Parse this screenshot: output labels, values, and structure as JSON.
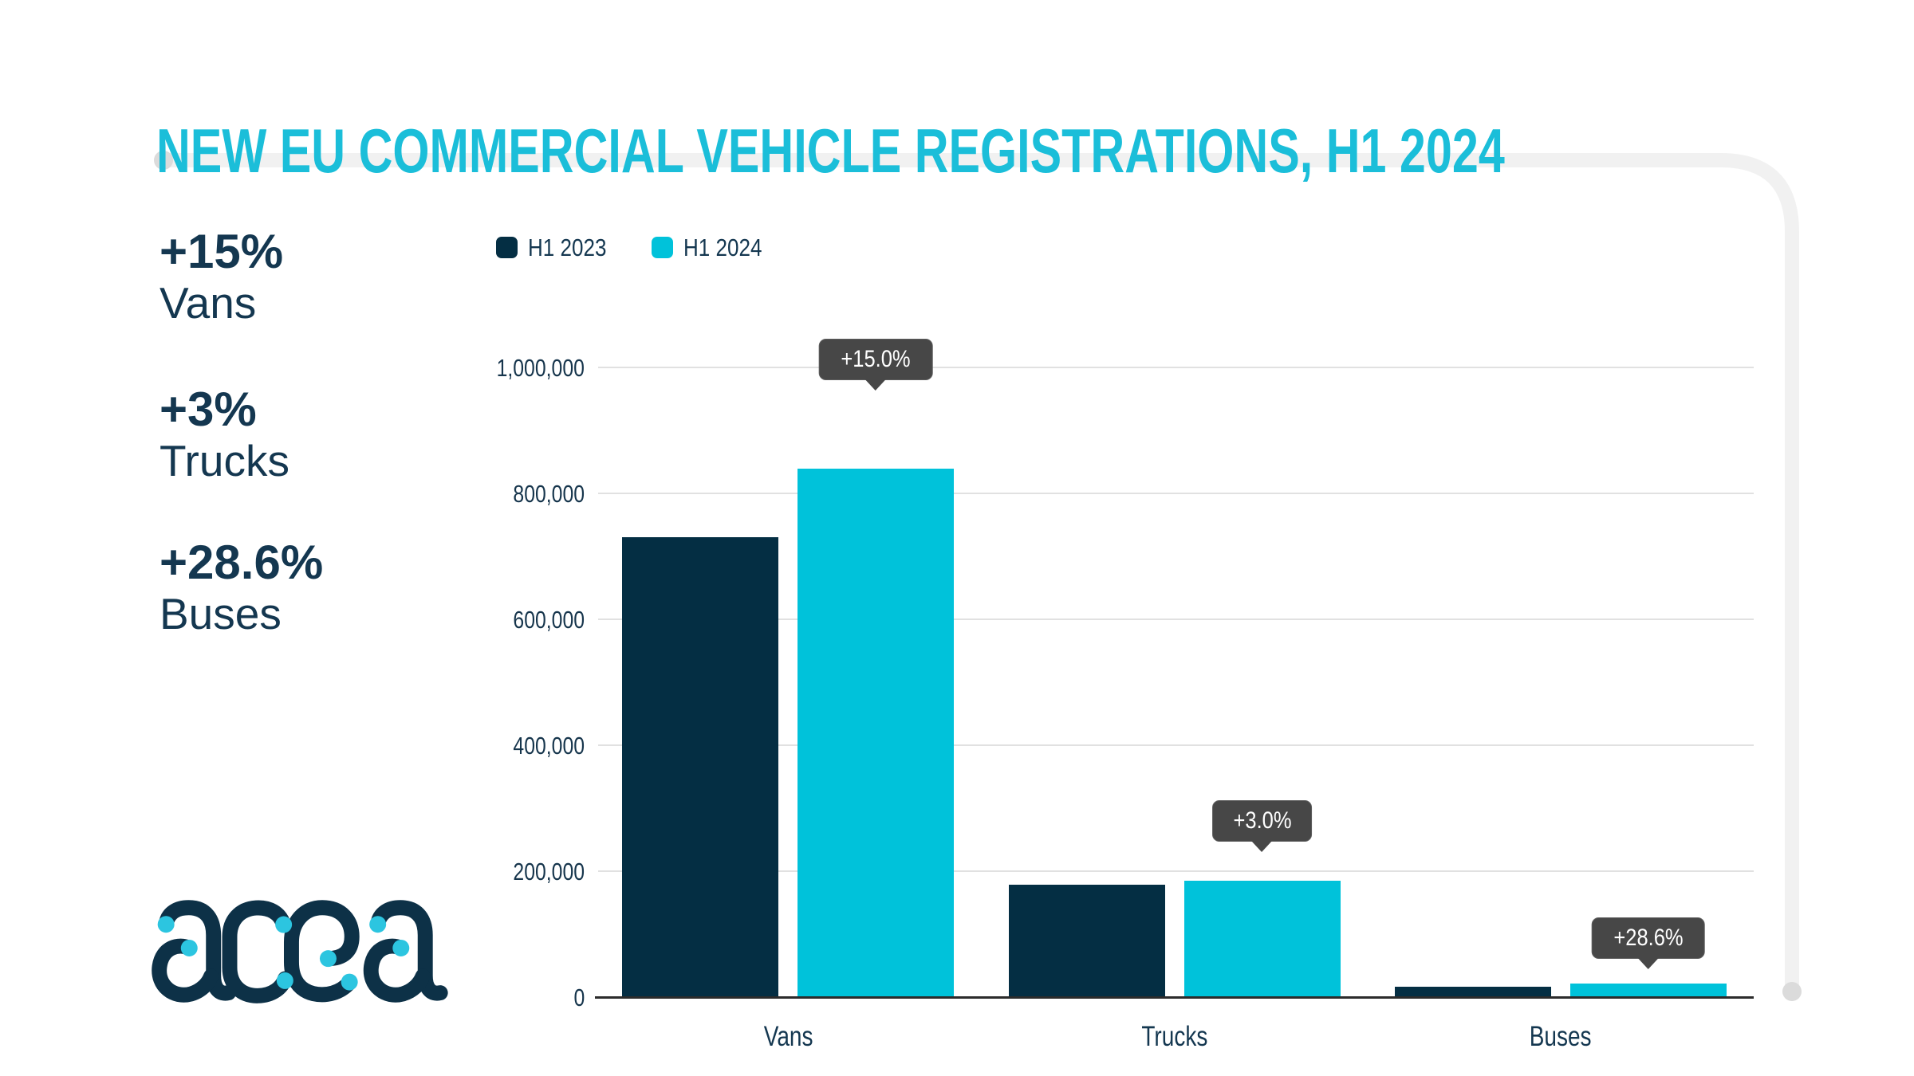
{
  "title": "NEW EU COMMERCIAL VEHICLE REGISTRATIONS, H1 2024",
  "stats": [
    {
      "value": "+15%",
      "label": "Vans"
    },
    {
      "value": "+3%",
      "label": "Trucks"
    },
    {
      "value": "+28.6%",
      "label": "Buses"
    }
  ],
  "chart_data": {
    "type": "bar",
    "categories": [
      "Vans",
      "Trucks",
      "Buses"
    ],
    "series": [
      {
        "name": "H1 2023",
        "color": "#042E43",
        "values": [
          730000,
          179000,
          16500
        ]
      },
      {
        "name": "H1 2024",
        "color": "#00C2DA",
        "values": [
          839500,
          184400,
          21200
        ]
      }
    ],
    "annotations": [
      {
        "category": "Vans",
        "label": "+15.0%"
      },
      {
        "category": "Trucks",
        "label": "+3.0%"
      },
      {
        "category": "Buses",
        "label": "+28.6%"
      }
    ],
    "title": "NEW EU COMMERCIAL VEHICLE REGISTRATIONS, H1 2024",
    "xlabel": "",
    "ylabel": "",
    "ylim": [
      0,
      1000000
    ],
    "yticks": [
      "0",
      "200,000",
      "400,000",
      "600,000",
      "800,000",
      "1,000,000"
    ],
    "grid": true,
    "legend_position": "top-left"
  },
  "logo": {
    "text": "acea"
  },
  "colors": {
    "title_cyan": "#1BBED9",
    "bar_cyan": "#00C2DA",
    "bar_navy": "#042E43",
    "text_navy": "#143750",
    "gridline": "#E1E1E1",
    "axis": "#2B2B2B",
    "tooltip_bg": "#474747",
    "tooltip_text": "#FFFFFF",
    "frame": "#F1F1F1",
    "frame_dot": "#DBDBDB",
    "logo_navy": "#0D3147",
    "logo_cyan": "#2CC5E0"
  }
}
